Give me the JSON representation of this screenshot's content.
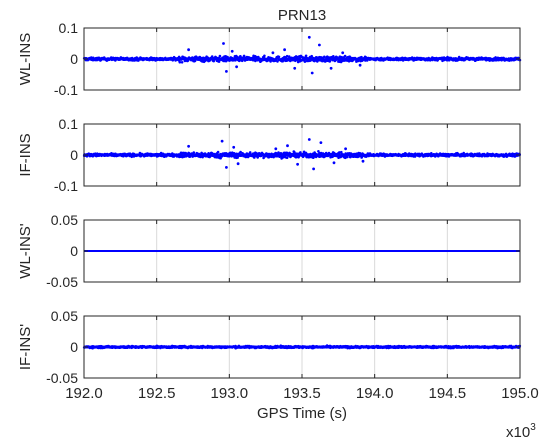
{
  "chart_data": {
    "type": "scatter",
    "title": "PRN13",
    "xlabel": "GPS Time (s)",
    "x_multiplier": "x10",
    "x_multiplier_exp": "3",
    "xlim": [
      192.0,
      195.0
    ],
    "x_ticks": [
      192.0,
      192.5,
      193.0,
      193.5,
      194.0,
      194.5,
      195.0
    ],
    "x_tick_labels": [
      "192.0",
      "192.5",
      "193.0",
      "193.5",
      "194.0",
      "194.5",
      "195.0"
    ],
    "grid": true,
    "colors": {
      "marker": "#0000ff",
      "axis": "#262626",
      "grid": "#d9d9d9"
    },
    "panels": [
      {
        "ylabel": "WL-INS",
        "ylim": [
          -0.1,
          0.1
        ],
        "y_ticks": [
          -0.1,
          0,
          0.1
        ],
        "y_tick_labels": [
          "-0.1",
          "0",
          "0.1"
        ],
        "typical_amplitude": 0.006,
        "burst_points": [
          {
            "x": 192.72,
            "y": 0.03
          },
          {
            "x": 192.96,
            "y": 0.05
          },
          {
            "x": 192.98,
            "y": -0.04
          },
          {
            "x": 193.02,
            "y": 0.025
          },
          {
            "x": 193.05,
            "y": -0.025
          },
          {
            "x": 193.3,
            "y": 0.02
          },
          {
            "x": 193.38,
            "y": 0.03
          },
          {
            "x": 193.45,
            "y": -0.03
          },
          {
            "x": 193.55,
            "y": 0.07
          },
          {
            "x": 193.57,
            "y": -0.045
          },
          {
            "x": 193.62,
            "y": 0.045
          },
          {
            "x": 193.7,
            "y": -0.03
          },
          {
            "x": 193.78,
            "y": 0.02
          },
          {
            "x": 193.9,
            "y": -0.02
          }
        ]
      },
      {
        "ylabel": "IF-INS",
        "ylim": [
          -0.1,
          0.1
        ],
        "y_ticks": [
          -0.1,
          0,
          0.1
        ],
        "y_tick_labels": [
          "-0.1",
          "0",
          "0.1"
        ],
        "typical_amplitude": 0.006,
        "burst_points": [
          {
            "x": 192.72,
            "y": 0.028
          },
          {
            "x": 192.95,
            "y": 0.045
          },
          {
            "x": 192.98,
            "y": -0.04
          },
          {
            "x": 193.03,
            "y": 0.025
          },
          {
            "x": 193.06,
            "y": -0.028
          },
          {
            "x": 193.32,
            "y": 0.02
          },
          {
            "x": 193.4,
            "y": 0.03
          },
          {
            "x": 193.47,
            "y": -0.03
          },
          {
            "x": 193.55,
            "y": 0.05
          },
          {
            "x": 193.58,
            "y": -0.045
          },
          {
            "x": 193.63,
            "y": 0.04
          },
          {
            "x": 193.72,
            "y": -0.025
          },
          {
            "x": 193.8,
            "y": 0.02
          },
          {
            "x": 193.92,
            "y": -0.02
          }
        ]
      },
      {
        "ylabel": "WL-INS'",
        "ylim": [
          -0.05,
          0.05
        ],
        "y_ticks": [
          -0.05,
          0,
          0.05
        ],
        "y_tick_labels": [
          "-0.05",
          "0",
          "0.05"
        ],
        "typical_amplitude": 0,
        "burst_points": []
      },
      {
        "ylabel": "IF-INS'",
        "ylim": [
          -0.05,
          0.05
        ],
        "y_ticks": [
          -0.05,
          0,
          0.05
        ],
        "y_tick_labels": [
          "-0.05",
          "0",
          "0.05"
        ],
        "typical_amplitude": 0.002,
        "burst_points": []
      }
    ]
  }
}
